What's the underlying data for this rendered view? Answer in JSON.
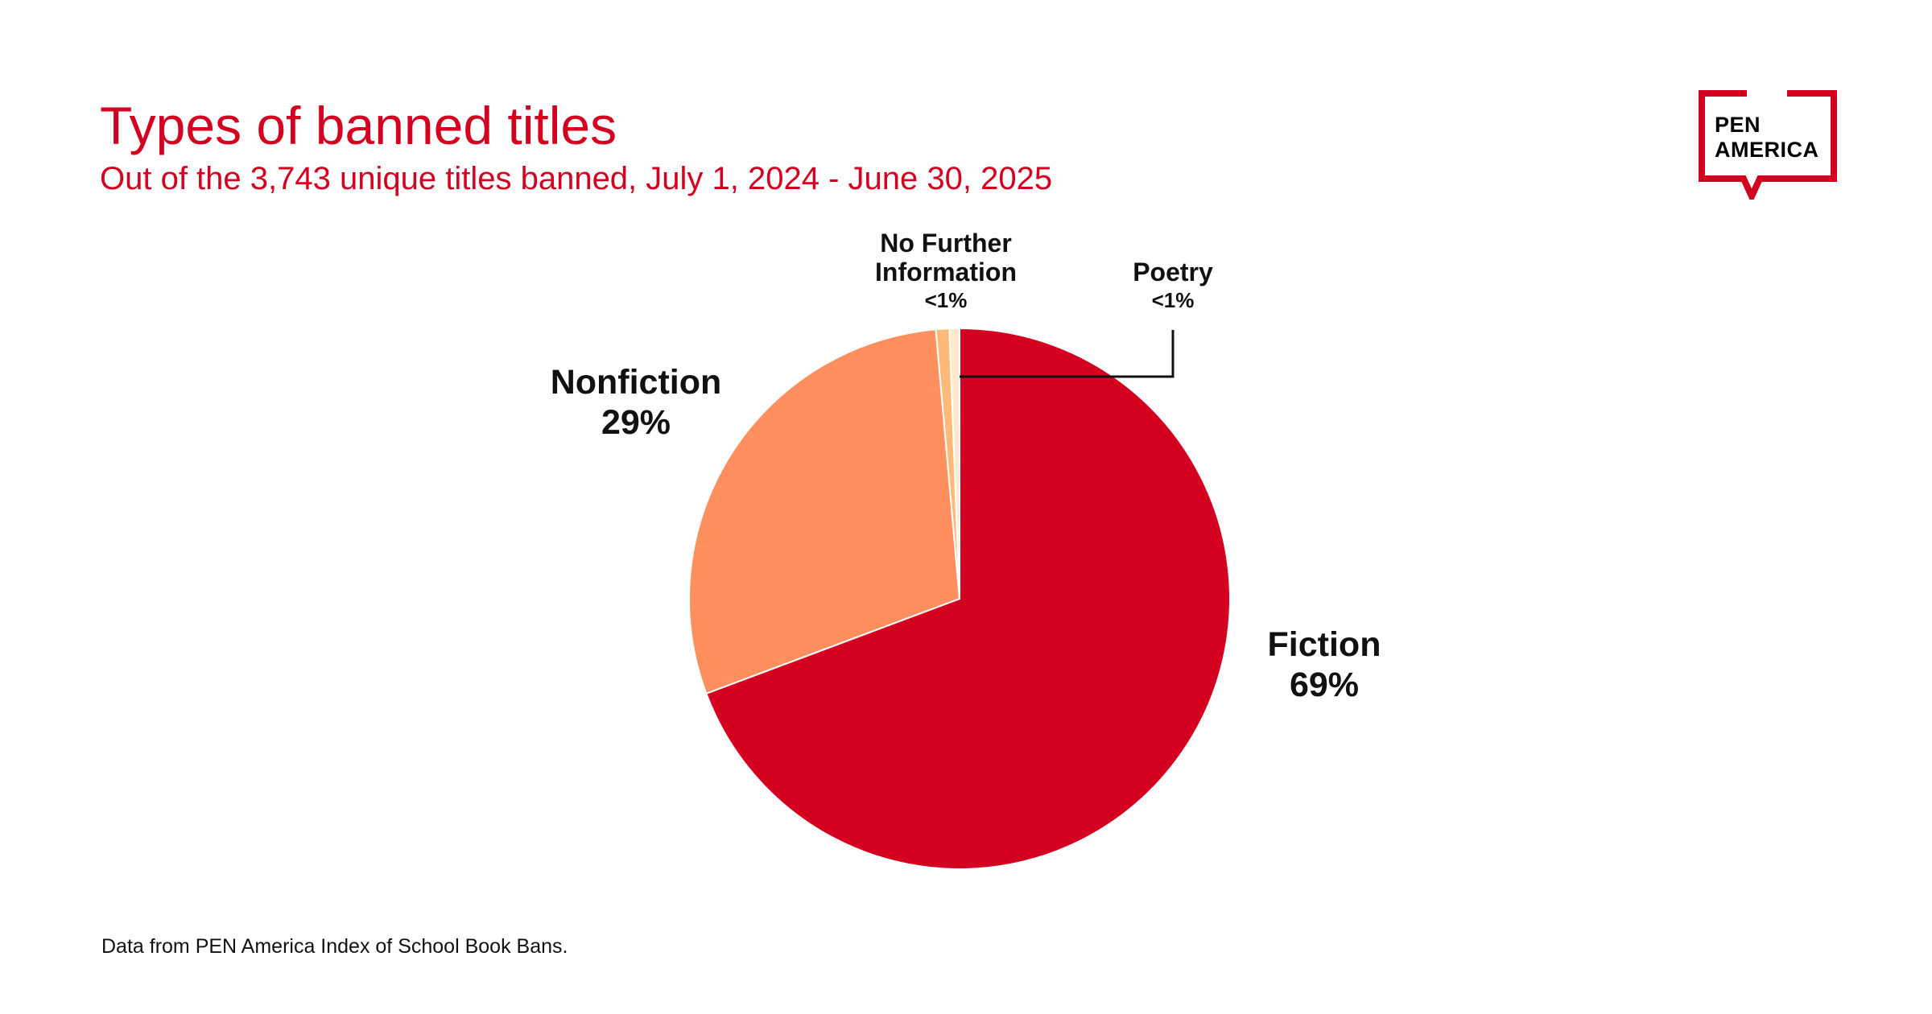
{
  "title": "Types of banned titles",
  "subtitle": "Out of the 3,743 unique titles banned, July 1, 2024 - June 30, 2025",
  "source": "Data from PEN America Index of School Book Bans.",
  "logo": {
    "line1": "PEN",
    "line2": "AMERICA",
    "color": "#d40020"
  },
  "chart_data": {
    "type": "pie",
    "title": "Types of banned titles",
    "subtitle": "Out of the 3,743 unique titles banned, July 1, 2024 - June 30, 2025",
    "start": "12 o'clock, clockwise",
    "slices": [
      {
        "label": "Fiction",
        "value": 69.3,
        "display": "69%",
        "color": "#d40020"
      },
      {
        "label": "Nonfiction",
        "value": 29.3,
        "display": "29%",
        "color": "#ff8f5e"
      },
      {
        "label": "No Further Information",
        "value": 0.8,
        "display": "<1%",
        "color": "#ffba7a"
      },
      {
        "label": "Poetry",
        "value": 0.6,
        "display": "<1%",
        "color": "#ffe8cc"
      }
    ]
  }
}
